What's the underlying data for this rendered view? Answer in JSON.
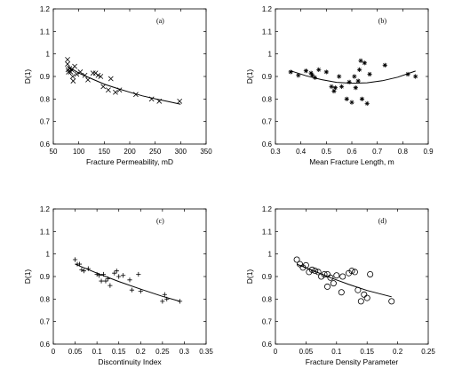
{
  "chart_data": [
    {
      "id": "a",
      "type": "scatter",
      "panel_label": "(a)",
      "xlabel": "Fracture Permeability, mD",
      "ylabel": "D(1)",
      "xlim": [
        50,
        350
      ],
      "ylim": [
        0.6,
        1.2
      ],
      "xticks": [
        50,
        100,
        150,
        200,
        250,
        300,
        350
      ],
      "xtick_labels": [
        "50",
        "100",
        "150",
        "200",
        "250",
        "300",
        "350"
      ],
      "yticks": [
        0.6,
        0.7,
        0.8,
        0.9,
        1.0,
        1.1,
        1.2
      ],
      "ytick_labels": [
        "0.6",
        "0.7",
        "0.8",
        "0.9",
        "1",
        "1.1",
        "1.2"
      ],
      "marker": "x",
      "points": [
        {
          "x": 78,
          "y": 0.975
        },
        {
          "x": 78,
          "y": 0.955
        },
        {
          "x": 79,
          "y": 0.93
        },
        {
          "x": 80,
          "y": 0.92
        },
        {
          "x": 82,
          "y": 0.935
        },
        {
          "x": 84,
          "y": 0.92
        },
        {
          "x": 86,
          "y": 0.93
        },
        {
          "x": 88,
          "y": 0.9
        },
        {
          "x": 89,
          "y": 0.88
        },
        {
          "x": 92,
          "y": 0.945
        },
        {
          "x": 96,
          "y": 0.91
        },
        {
          "x": 103,
          "y": 0.92
        },
        {
          "x": 112,
          "y": 0.905
        },
        {
          "x": 118,
          "y": 0.885
        },
        {
          "x": 128,
          "y": 0.915
        },
        {
          "x": 133,
          "y": 0.915
        },
        {
          "x": 138,
          "y": 0.905
        },
        {
          "x": 143,
          "y": 0.9
        },
        {
          "x": 148,
          "y": 0.855
        },
        {
          "x": 158,
          "y": 0.84
        },
        {
          "x": 163,
          "y": 0.89
        },
        {
          "x": 172,
          "y": 0.83
        },
        {
          "x": 180,
          "y": 0.84
        },
        {
          "x": 212,
          "y": 0.82
        },
        {
          "x": 243,
          "y": 0.8
        },
        {
          "x": 258,
          "y": 0.79
        },
        {
          "x": 298,
          "y": 0.79
        }
      ],
      "fit": {
        "x": [
          78,
          100,
          125,
          150,
          175,
          200,
          225,
          250,
          275,
          300
        ],
        "y": [
          0.945,
          0.915,
          0.89,
          0.866,
          0.847,
          0.83,
          0.814,
          0.801,
          0.789,
          0.777
        ]
      }
    },
    {
      "id": "b",
      "type": "scatter",
      "panel_label": "(b)",
      "xlabel": "Mean Fracture Length, m",
      "ylabel": "D(1)",
      "xlim": [
        0.3,
        0.9
      ],
      "ylim": [
        0.6,
        1.2
      ],
      "xticks": [
        0.3,
        0.4,
        0.5,
        0.6,
        0.7,
        0.8,
        0.9
      ],
      "xtick_labels": [
        "0.3",
        "0.4",
        "0.5",
        "0.6",
        "0.7",
        "0.8",
        "0.9"
      ],
      "yticks": [
        0.6,
        0.7,
        0.8,
        0.9,
        1.0,
        1.1,
        1.2
      ],
      "ytick_labels": [
        "0.6",
        "0.7",
        "0.8",
        "0.9",
        "1",
        "1.1",
        "1.2"
      ],
      "marker": "asterisk",
      "points": [
        {
          "x": 0.36,
          "y": 0.92
        },
        {
          "x": 0.39,
          "y": 0.905
        },
        {
          "x": 0.42,
          "y": 0.925
        },
        {
          "x": 0.44,
          "y": 0.915
        },
        {
          "x": 0.445,
          "y": 0.905
        },
        {
          "x": 0.455,
          "y": 0.895
        },
        {
          "x": 0.47,
          "y": 0.93
        },
        {
          "x": 0.5,
          "y": 0.92
        },
        {
          "x": 0.52,
          "y": 0.855
        },
        {
          "x": 0.53,
          "y": 0.835
        },
        {
          "x": 0.535,
          "y": 0.85
        },
        {
          "x": 0.55,
          "y": 0.9
        },
        {
          "x": 0.56,
          "y": 0.855
        },
        {
          "x": 0.58,
          "y": 0.8
        },
        {
          "x": 0.59,
          "y": 0.875
        },
        {
          "x": 0.6,
          "y": 0.785
        },
        {
          "x": 0.61,
          "y": 0.9
        },
        {
          "x": 0.615,
          "y": 0.85
        },
        {
          "x": 0.625,
          "y": 0.88
        },
        {
          "x": 0.63,
          "y": 0.93
        },
        {
          "x": 0.635,
          "y": 0.97
        },
        {
          "x": 0.64,
          "y": 0.8
        },
        {
          "x": 0.65,
          "y": 0.96
        },
        {
          "x": 0.66,
          "y": 0.78
        },
        {
          "x": 0.67,
          "y": 0.91
        },
        {
          "x": 0.73,
          "y": 0.95
        },
        {
          "x": 0.82,
          "y": 0.91
        },
        {
          "x": 0.85,
          "y": 0.9
        }
      ],
      "fit": {
        "x": [
          0.36,
          0.42,
          0.48,
          0.54,
          0.6,
          0.66,
          0.72,
          0.78,
          0.85
        ],
        "y": [
          0.925,
          0.903,
          0.886,
          0.874,
          0.87,
          0.872,
          0.881,
          0.897,
          0.924
        ]
      }
    },
    {
      "id": "c",
      "type": "scatter",
      "panel_label": "(c)",
      "xlabel": "Discontinuity Index",
      "ylabel": "D(1)",
      "xlim": [
        0,
        0.35
      ],
      "ylim": [
        0.6,
        1.2
      ],
      "xticks": [
        0,
        0.05,
        0.1,
        0.15,
        0.2,
        0.25,
        0.3,
        0.35
      ],
      "xtick_labels": [
        "0",
        "0.05",
        "0.1",
        "0.15",
        "0.2",
        "0.25",
        "0.3",
        "0.35"
      ],
      "yticks": [
        0.6,
        0.7,
        0.8,
        0.9,
        1.0,
        1.1,
        1.2
      ],
      "ytick_labels": [
        "0.6",
        "0.7",
        "0.8",
        "0.9",
        "1",
        "1.1",
        "1.2"
      ],
      "marker": "plus",
      "points": [
        {
          "x": 0.05,
          "y": 0.975
        },
        {
          "x": 0.055,
          "y": 0.955
        },
        {
          "x": 0.06,
          "y": 0.955
        },
        {
          "x": 0.065,
          "y": 0.93
        },
        {
          "x": 0.07,
          "y": 0.925
        },
        {
          "x": 0.08,
          "y": 0.935
        },
        {
          "x": 0.1,
          "y": 0.91
        },
        {
          "x": 0.105,
          "y": 0.905
        },
        {
          "x": 0.11,
          "y": 0.88
        },
        {
          "x": 0.115,
          "y": 0.91
        },
        {
          "x": 0.12,
          "y": 0.88
        },
        {
          "x": 0.125,
          "y": 0.89
        },
        {
          "x": 0.13,
          "y": 0.86
        },
        {
          "x": 0.14,
          "y": 0.915
        },
        {
          "x": 0.145,
          "y": 0.925
        },
        {
          "x": 0.15,
          "y": 0.9
        },
        {
          "x": 0.16,
          "y": 0.905
        },
        {
          "x": 0.175,
          "y": 0.885
        },
        {
          "x": 0.18,
          "y": 0.84
        },
        {
          "x": 0.195,
          "y": 0.91
        },
        {
          "x": 0.2,
          "y": 0.835
        },
        {
          "x": 0.25,
          "y": 0.79
        },
        {
          "x": 0.255,
          "y": 0.82
        },
        {
          "x": 0.26,
          "y": 0.8
        },
        {
          "x": 0.29,
          "y": 0.79
        }
      ],
      "fit": {
        "x": [
          0.05,
          0.1,
          0.15,
          0.2,
          0.25,
          0.29
        ],
        "y": [
          0.955,
          0.915,
          0.878,
          0.844,
          0.812,
          0.79
        ]
      }
    },
    {
      "id": "d",
      "type": "scatter",
      "panel_label": "(d)",
      "xlabel": "Fracture Density Parameter",
      "ylabel": "D(1)",
      "xlim": [
        0,
        0.25
      ],
      "ylim": [
        0.6,
        1.2
      ],
      "xticks": [
        0,
        0.05,
        0.1,
        0.15,
        0.2,
        0.25
      ],
      "xtick_labels": [
        "0",
        "0.05",
        "0.1",
        "0.15",
        "0.2",
        "0.25"
      ],
      "yticks": [
        0.6,
        0.7,
        0.8,
        0.9,
        1.0,
        1.1,
        1.2
      ],
      "ytick_labels": [
        "0.6",
        "0.7",
        "0.8",
        "0.9",
        "1",
        "1.1",
        "1.2"
      ],
      "marker": "circle",
      "points": [
        {
          "x": 0.035,
          "y": 0.975
        },
        {
          "x": 0.04,
          "y": 0.955
        },
        {
          "x": 0.045,
          "y": 0.94
        },
        {
          "x": 0.05,
          "y": 0.95
        },
        {
          "x": 0.055,
          "y": 0.92
        },
        {
          "x": 0.06,
          "y": 0.93
        },
        {
          "x": 0.065,
          "y": 0.925
        },
        {
          "x": 0.07,
          "y": 0.92
        },
        {
          "x": 0.075,
          "y": 0.9
        },
        {
          "x": 0.08,
          "y": 0.91
        },
        {
          "x": 0.085,
          "y": 0.91
        },
        {
          "x": 0.09,
          "y": 0.895
        },
        {
          "x": 0.095,
          "y": 0.87
        },
        {
          "x": 0.1,
          "y": 0.905
        },
        {
          "x": 0.11,
          "y": 0.9
        },
        {
          "x": 0.12,
          "y": 0.915
        },
        {
          "x": 0.125,
          "y": 0.925
        },
        {
          "x": 0.13,
          "y": 0.92
        },
        {
          "x": 0.135,
          "y": 0.84
        },
        {
          "x": 0.14,
          "y": 0.79
        },
        {
          "x": 0.145,
          "y": 0.82
        },
        {
          "x": 0.15,
          "y": 0.805
        },
        {
          "x": 0.155,
          "y": 0.91
        },
        {
          "x": 0.19,
          "y": 0.79
        },
        {
          "x": 0.085,
          "y": 0.855
        },
        {
          "x": 0.108,
          "y": 0.83
        }
      ],
      "fit": {
        "x": [
          0.035,
          0.06,
          0.09,
          0.12,
          0.15,
          0.19
        ],
        "y": [
          0.955,
          0.928,
          0.895,
          0.865,
          0.838,
          0.81
        ]
      }
    }
  ]
}
